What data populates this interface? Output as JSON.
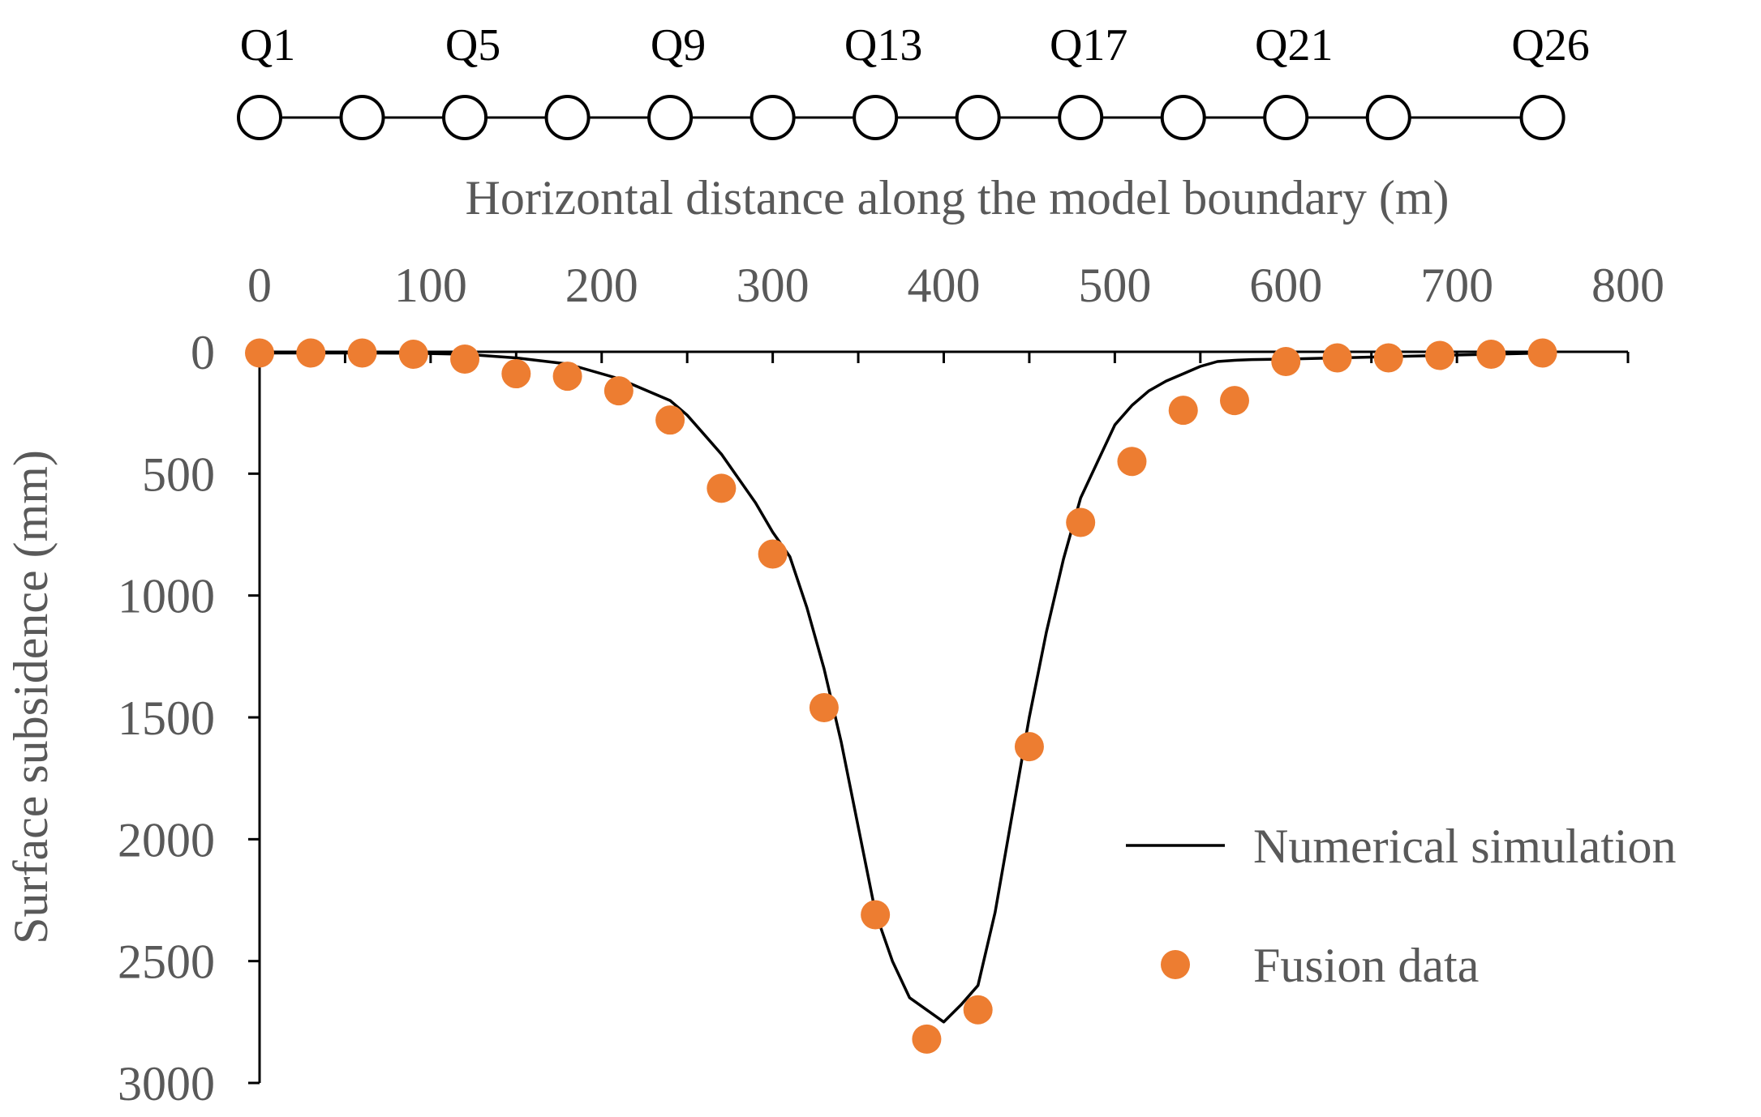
{
  "chart_data": {
    "type": "line",
    "title": "",
    "xlabel": "Horizontal distance along the model boundary (m)",
    "ylabel": "Surface subsidence (mm)",
    "xlim": [
      0,
      800
    ],
    "ylim": [
      0,
      3000
    ],
    "y_inverted": true,
    "x_axis_position": "top",
    "x_ticks": [
      0,
      100,
      200,
      300,
      400,
      500,
      600,
      700,
      800
    ],
    "y_ticks": [
      0,
      500,
      1000,
      1500,
      2000,
      2500,
      3000
    ],
    "grid": false,
    "legend_position": "bottom-right",
    "stations": {
      "labeled": [
        {
          "label": "Q1",
          "x": 0
        },
        {
          "label": "Q5",
          "x": 120
        },
        {
          "label": "Q9",
          "x": 240
        },
        {
          "label": "Q13",
          "x": 360
        },
        {
          "label": "Q17",
          "x": 480
        },
        {
          "label": "Q21",
          "x": 600
        },
        {
          "label": "Q26",
          "x": 750
        }
      ],
      "markers_x": [
        0,
        60,
        120,
        180,
        240,
        300,
        360,
        420,
        480,
        540,
        600,
        660,
        750
      ]
    },
    "series": [
      {
        "name": "Numerical simulation",
        "kind": "line",
        "color": "#000000",
        "x": [
          0,
          30,
          60,
          90,
          120,
          150,
          180,
          210,
          240,
          250,
          260,
          270,
          280,
          290,
          300,
          310,
          320,
          330,
          340,
          350,
          360,
          370,
          380,
          390,
          400,
          410,
          420,
          430,
          440,
          450,
          460,
          470,
          480,
          490,
          500,
          510,
          520,
          530,
          540,
          550,
          560,
          570,
          580,
          600,
          630,
          660,
          690,
          720,
          750
        ],
        "y": [
          5,
          5,
          5,
          6,
          10,
          25,
          50,
          110,
          200,
          260,
          340,
          420,
          520,
          620,
          740,
          840,
          1050,
          1300,
          1600,
          1950,
          2300,
          2500,
          2650,
          2700,
          2750,
          2680,
          2600,
          2300,
          1900,
          1500,
          1150,
          850,
          600,
          450,
          300,
          220,
          160,
          120,
          90,
          60,
          40,
          35,
          32,
          30,
          25,
          20,
          15,
          10,
          5
        ]
      },
      {
        "name": "Fusion data",
        "kind": "scatter",
        "color": "#ED7D31",
        "x": [
          0,
          30,
          60,
          90,
          120,
          150,
          180,
          210,
          240,
          270,
          300,
          330,
          360,
          390,
          420,
          450,
          480,
          510,
          540,
          570,
          600,
          630,
          660,
          690,
          720,
          750
        ],
        "y": [
          5,
          5,
          5,
          10,
          30,
          90,
          100,
          160,
          280,
          560,
          830,
          1460,
          2310,
          2820,
          2700,
          1620,
          700,
          450,
          240,
          200,
          40,
          25,
          25,
          15,
          10,
          5
        ]
      }
    ]
  }
}
